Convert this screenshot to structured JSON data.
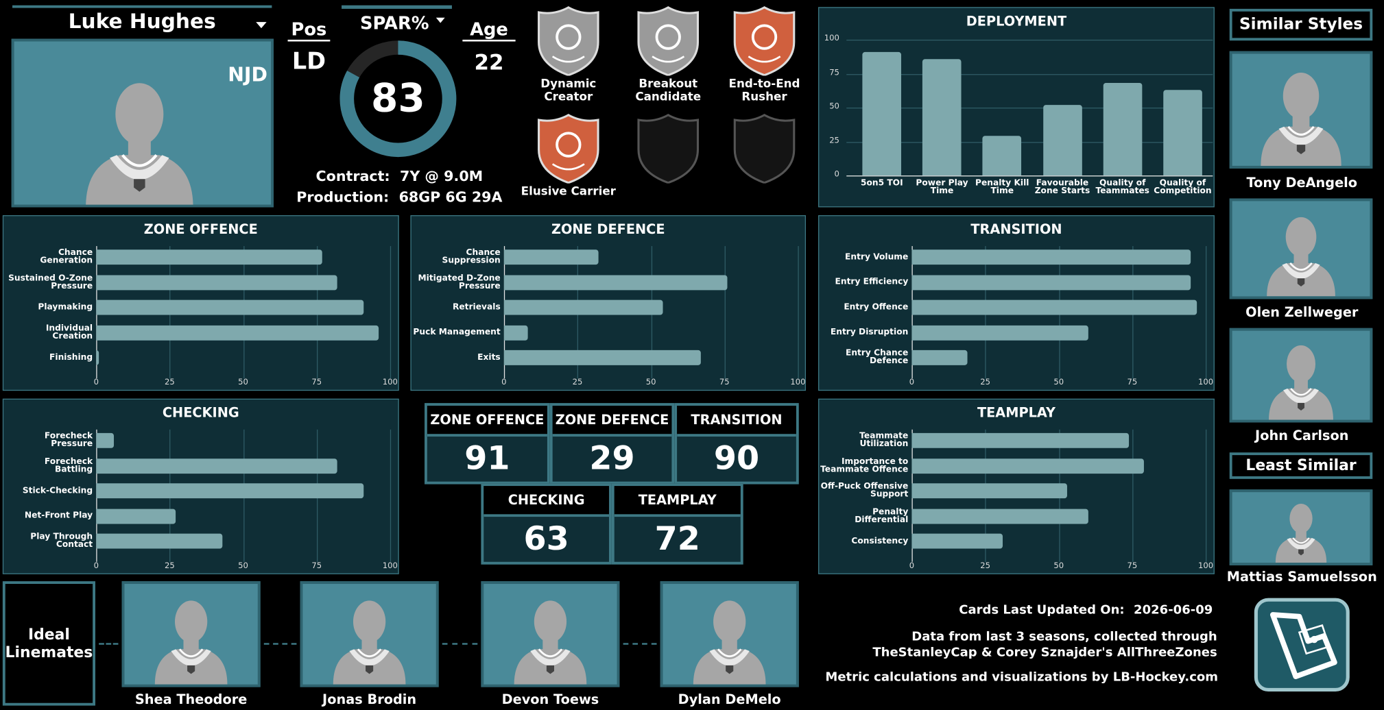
{
  "player": {
    "name": "Luke Hughes",
    "team": "NJD",
    "pos_label": "Pos",
    "pos": "LD",
    "spar_label": "SPAR%",
    "spar": 83,
    "age_label": "Age",
    "age": 22,
    "contract_label": "Contract:",
    "contract": "7Y @ 9.0M",
    "production_label": "Production:",
    "production": "68GP 6G 29A"
  },
  "badges": [
    "Dynamic Creator",
    "Breakout Candidate",
    "End-to-End Rusher",
    "Elusive Carrier"
  ],
  "chart_data": [
    {
      "type": "bar",
      "title": "DEPLOYMENT",
      "categories": [
        "5on5 TOI",
        "Power Play Time",
        "Penalty Kill Time",
        "Favourable Zone Starts",
        "Quality of Teammates",
        "Quality of Competition"
      ],
      "values": [
        91,
        86,
        29,
        52,
        68,
        63
      ],
      "color": "#7fa9ad",
      "ylim": [
        0,
        100
      ],
      "yticks": [
        0,
        25,
        50,
        75,
        100
      ],
      "grid": true
    },
    {
      "type": "hbar",
      "title": "ZONE OFFENCE",
      "categories": [
        "Chance Generation",
        "Sustained O-Zone Pressure",
        "Playmaking",
        "Individual Creation",
        "Finishing"
      ],
      "values": [
        77,
        82,
        91,
        96,
        1
      ],
      "color": "#7fa9ad",
      "xlim": [
        0,
        100
      ],
      "xticks": [
        0,
        25,
        50,
        75,
        100
      ],
      "grid": true
    },
    {
      "type": "hbar",
      "title": "ZONE DEFENCE",
      "categories": [
        "Chance Suppression",
        "Mitigated D-Zone Pressure",
        "Retrievals",
        "Puck Management",
        "Exits"
      ],
      "values": [
        32,
        76,
        54,
        8,
        67
      ],
      "color": "#7fa9ad",
      "xlim": [
        0,
        100
      ],
      "xticks": [
        0,
        25,
        50,
        75,
        100
      ],
      "grid": true
    },
    {
      "type": "hbar",
      "title": "TRANSITION",
      "categories": [
        "Entry Volume",
        "Entry Efficiency",
        "Entry Offence",
        "Entry Disruption",
        "Entry Chance Defence"
      ],
      "values": [
        95,
        95,
        97,
        60,
        19
      ],
      "color": "#7fa9ad",
      "xlim": [
        0,
        100
      ],
      "xticks": [
        0,
        25,
        50,
        75,
        100
      ],
      "grid": true
    },
    {
      "type": "hbar",
      "title": "CHECKING",
      "categories": [
        "Forecheck Pressure",
        "Forecheck Battling",
        "Stick-Checking",
        "Net-Front Play",
        "Play Through Contact"
      ],
      "values": [
        6,
        82,
        91,
        27,
        43
      ],
      "color": "#7fa9ad",
      "xlim": [
        0,
        100
      ],
      "xticks": [
        0,
        25,
        50,
        75,
        100
      ],
      "grid": true
    },
    {
      "type": "hbar",
      "title": "TEAMPLAY",
      "categories": [
        "Teammate Utilization",
        "Importance to Teammate Offence",
        "Off-Puck Offensive Support",
        "Penalty Differential",
        "Consistency"
      ],
      "values": [
        74,
        79,
        53,
        60,
        31
      ],
      "color": "#7fa9ad",
      "xlim": [
        0,
        100
      ],
      "xticks": [
        0,
        25,
        50,
        75,
        100
      ],
      "grid": true
    }
  ],
  "scores": [
    {
      "label": "ZONE OFFENCE",
      "value": 91
    },
    {
      "label": "ZONE DEFENCE",
      "value": 29
    },
    {
      "label": "TRANSITION",
      "value": 90
    },
    {
      "label": "CHECKING",
      "value": 63
    },
    {
      "label": "TEAMPLAY",
      "value": 72
    }
  ],
  "similar": {
    "title": "Similar Styles",
    "players": [
      "Tony DeAngelo",
      "Olen Zellweger",
      "John Carlson"
    ],
    "least_title": "Least Similar",
    "least": [
      "Mattias Samuelsson"
    ]
  },
  "linemates": {
    "title": "Ideal Linemates",
    "players": [
      "Shea Theodore",
      "Jonas Brodin",
      "Devon Toews",
      "Dylan DeMelo"
    ]
  },
  "footer": {
    "updated_label": "Cards Last Updated On:",
    "updated": "2026-06-09",
    "source_lines": [
      "Data from last 3 seasons, collected through",
      "TheStanleyCap & Corey Sznajder's AllThreeZones"
    ],
    "credit": "Metric calculations and visualizations by LB-Hockey.com"
  }
}
